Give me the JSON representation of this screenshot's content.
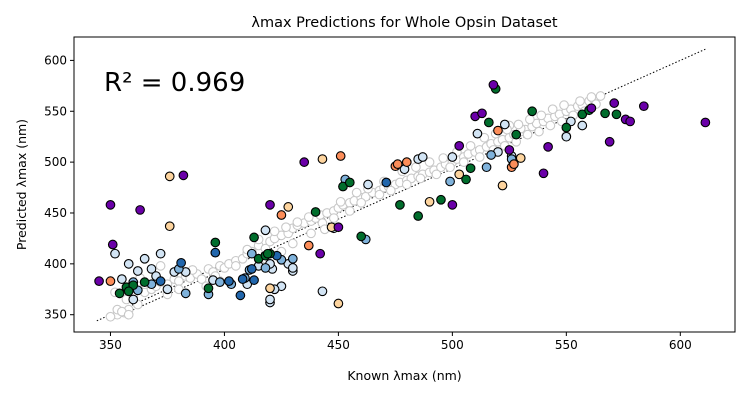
{
  "chart_data": {
    "type": "scatter",
    "title": "λmax Predictions for Whole Opsin Dataset",
    "xlabel": "Known λmax (nm)",
    "ylabel": "Predicted λmax (nm)",
    "annotation": "R² = 0.969",
    "xlim": [
      334,
      624
    ],
    "ylim": [
      333,
      623
    ],
    "xticks": [
      350,
      400,
      450,
      500,
      550,
      600
    ],
    "yticks": [
      350,
      400,
      450,
      500,
      550,
      600
    ],
    "grid": false,
    "reference_lines": [
      {
        "style": "dotted",
        "color": "#000000",
        "points": [
          [
            344,
            344
          ],
          [
            611,
            611
          ]
        ]
      },
      {
        "style": "dotted",
        "color": "#000000",
        "points": [
          [
            350,
            345
          ],
          [
            555,
            548
          ]
        ]
      }
    ],
    "series": [
      {
        "color": "#ffffff",
        "points": [
          [
            353,
            350
          ],
          [
            356,
            352
          ],
          [
            358,
            355
          ],
          [
            362,
            360
          ],
          [
            360,
            370
          ],
          [
            365,
            372
          ],
          [
            368,
            375
          ],
          [
            370,
            378
          ],
          [
            372,
            382
          ],
          [
            375,
            380
          ],
          [
            378,
            385
          ],
          [
            380,
            383
          ],
          [
            383,
            388
          ],
          [
            385,
            386
          ],
          [
            388,
            390
          ],
          [
            390,
            385
          ],
          [
            393,
            395
          ],
          [
            395,
            392
          ],
          [
            398,
            398
          ],
          [
            400,
            396
          ],
          [
            402,
            400
          ],
          [
            405,
            403
          ],
          [
            408,
            405
          ],
          [
            410,
            410
          ],
          [
            412,
            412
          ],
          [
            415,
            418
          ],
          [
            418,
            415
          ],
          [
            420,
            422
          ],
          [
            422,
            425
          ],
          [
            425,
            428
          ],
          [
            428,
            430
          ],
          [
            430,
            435
          ],
          [
            432,
            438
          ],
          [
            435,
            440
          ],
          [
            438,
            442
          ],
          [
            440,
            445
          ],
          [
            442,
            448
          ],
          [
            445,
            450
          ],
          [
            448,
            452
          ],
          [
            450,
            455
          ],
          [
            452,
            458
          ],
          [
            455,
            460
          ],
          [
            457,
            462
          ],
          [
            460,
            465
          ],
          [
            462,
            466
          ],
          [
            465,
            470
          ],
          [
            468,
            472
          ],
          [
            470,
            475
          ],
          [
            472,
            476
          ],
          [
            475,
            478
          ],
          [
            477,
            480
          ],
          [
            480,
            482
          ],
          [
            482,
            484
          ],
          [
            485,
            486
          ],
          [
            487,
            488
          ],
          [
            490,
            490
          ],
          [
            492,
            492
          ],
          [
            495,
            495
          ],
          [
            497,
            498
          ],
          [
            500,
            500
          ],
          [
            502,
            503
          ],
          [
            505,
            505
          ],
          [
            507,
            508
          ],
          [
            510,
            510
          ],
          [
            512,
            512
          ],
          [
            515,
            515
          ],
          [
            517,
            518
          ],
          [
            520,
            520
          ],
          [
            522,
            522
          ],
          [
            525,
            524
          ],
          [
            527,
            527
          ],
          [
            530,
            530
          ],
          [
            532,
            532
          ],
          [
            535,
            535
          ],
          [
            537,
            538
          ],
          [
            540,
            540
          ],
          [
            542,
            543
          ],
          [
            545,
            545
          ],
          [
            547,
            547
          ],
          [
            550,
            550
          ],
          [
            552,
            552
          ],
          [
            555,
            555
          ],
          [
            557,
            556
          ],
          [
            560,
            560
          ],
          [
            562,
            562
          ],
          [
            350,
            348
          ],
          [
            353,
            355
          ],
          [
            357,
            365
          ],
          [
            360,
            368
          ],
          [
            365,
            380
          ],
          [
            375,
            370
          ],
          [
            380,
            375
          ],
          [
            392,
            378
          ],
          [
            398,
            383
          ],
          [
            405,
            398
          ],
          [
            418,
            405
          ],
          [
            425,
            412
          ],
          [
            430,
            420
          ],
          [
            438,
            430
          ],
          [
            443,
            440
          ],
          [
            448,
            445
          ],
          [
            455,
            452
          ],
          [
            460,
            460
          ],
          [
            468,
            468
          ],
          [
            473,
            472
          ],
          [
            480,
            478
          ],
          [
            486,
            484
          ],
          [
            493,
            488
          ],
          [
            499,
            495
          ],
          [
            505,
            500
          ],
          [
            512,
            505
          ],
          [
            518,
            512
          ],
          [
            523,
            516
          ],
          [
            528,
            520
          ],
          [
            533,
            527
          ],
          [
            538,
            530
          ],
          [
            543,
            536
          ],
          [
            548,
            540
          ],
          [
            553,
            546
          ],
          [
            558,
            550
          ],
          [
            563,
            557
          ],
          [
            525,
            536
          ],
          [
            530,
            533
          ],
          [
            550,
            526
          ],
          [
            565,
            565
          ],
          [
            355,
            353
          ],
          [
            358,
            350
          ],
          [
            352,
            372
          ],
          [
            363,
            386
          ],
          [
            372,
            398
          ],
          [
            386,
            394
          ],
          [
            396,
            388
          ],
          [
            410,
            414
          ],
          [
            415,
            424
          ],
          [
            422,
            432
          ],
          [
            427,
            436
          ],
          [
            432,
            441
          ],
          [
            437,
            446
          ],
          [
            444,
            434
          ],
          [
            451,
            461
          ],
          [
            458,
            470
          ],
          [
            463,
            474
          ],
          [
            470,
            481
          ],
          [
            478,
            491
          ],
          [
            484,
            495
          ],
          [
            490,
            500
          ],
          [
            496,
            504
          ],
          [
            502,
            510
          ],
          [
            508,
            516
          ],
          [
            514,
            524
          ],
          [
            519,
            528
          ],
          [
            524,
            532
          ],
          [
            529,
            537
          ],
          [
            534,
            542
          ],
          [
            539,
            546
          ],
          [
            544,
            552
          ],
          [
            549,
            556
          ],
          [
            556,
            560
          ],
          [
            561,
            564
          ]
        ]
      },
      {
        "color": "#d2e4f4",
        "points": [
          [
            352,
            410
          ],
          [
            355,
            385
          ],
          [
            358,
            400
          ],
          [
            360,
            365
          ],
          [
            362,
            393
          ],
          [
            365,
            405
          ],
          [
            368,
            395
          ],
          [
            370,
            388
          ],
          [
            372,
            410
          ],
          [
            375,
            375
          ],
          [
            378,
            392
          ],
          [
            383,
            392
          ],
          [
            395,
            384
          ],
          [
            410,
            380
          ],
          [
            415,
            398
          ],
          [
            418,
            433
          ],
          [
            420,
            398
          ],
          [
            421,
            395
          ],
          [
            425,
            378
          ],
          [
            420,
            400
          ],
          [
            428,
            400
          ],
          [
            430,
            393
          ],
          [
            443,
            373
          ],
          [
            448,
            435
          ],
          [
            463,
            478
          ],
          [
            479,
            493
          ],
          [
            485,
            503
          ],
          [
            487,
            505
          ],
          [
            500,
            505
          ],
          [
            511,
            528
          ],
          [
            520,
            510
          ],
          [
            523,
            537
          ],
          [
            526,
            506
          ],
          [
            550,
            525
          ],
          [
            552,
            540
          ],
          [
            557,
            536
          ],
          [
            420,
            362
          ],
          [
            420,
            365
          ],
          [
            422,
            375
          ],
          [
            430,
            396
          ]
        ]
      },
      {
        "color": "#7fb2db",
        "points": [
          [
            360,
            382
          ],
          [
            362,
            374
          ],
          [
            368,
            380
          ],
          [
            383,
            371
          ],
          [
            393,
            370
          ],
          [
            398,
            382
          ],
          [
            409,
            386
          ],
          [
            412,
            410
          ],
          [
            418,
            396
          ],
          [
            430,
            405
          ],
          [
            453,
            483
          ],
          [
            462,
            424
          ],
          [
            499,
            481
          ],
          [
            515,
            495
          ],
          [
            517,
            507
          ],
          [
            526,
            503
          ],
          [
            380,
            395
          ],
          [
            403,
            380
          ],
          [
            411,
            394
          ],
          [
            425,
            404
          ]
        ]
      },
      {
        "color": "#2166ac",
        "points": [
          [
            372,
            383
          ],
          [
            381,
            401
          ],
          [
            396,
            411
          ],
          [
            407,
            369
          ],
          [
            412,
            395
          ],
          [
            402,
            383
          ],
          [
            413,
            384
          ],
          [
            423,
            408
          ],
          [
            408,
            385
          ],
          [
            471,
            480
          ]
        ]
      },
      {
        "color": "#006d2c",
        "points": [
          [
            354,
            371
          ],
          [
            357,
            377
          ],
          [
            360,
            379
          ],
          [
            365,
            382
          ],
          [
            393,
            376
          ],
          [
            396,
            421
          ],
          [
            413,
            426
          ],
          [
            415,
            405
          ],
          [
            418,
            408
          ],
          [
            420,
            410
          ],
          [
            440,
            451
          ],
          [
            452,
            476
          ],
          [
            460,
            427
          ],
          [
            477,
            458
          ],
          [
            485,
            447
          ],
          [
            495,
            463
          ],
          [
            506,
            483
          ],
          [
            508,
            494
          ],
          [
            516,
            539
          ],
          [
            519,
            572
          ],
          [
            528,
            527
          ],
          [
            535,
            550
          ],
          [
            550,
            534
          ],
          [
            557,
            547
          ],
          [
            567,
            548
          ],
          [
            572,
            547
          ],
          [
            455,
            480
          ],
          [
            358,
            373
          ],
          [
            419,
            410
          ],
          [
            560,
            551
          ]
        ]
      },
      {
        "color": "#fdd49e",
        "points": [
          [
            376,
            486
          ],
          [
            376,
            437
          ],
          [
            420,
            376
          ],
          [
            428,
            456
          ],
          [
            447,
            436
          ],
          [
            450,
            361
          ],
          [
            490,
            461
          ],
          [
            503,
            488
          ],
          [
            522,
            477
          ],
          [
            530,
            504
          ],
          [
            443,
            503
          ]
        ]
      },
      {
        "color": "#fc8d59",
        "points": [
          [
            425,
            448
          ],
          [
            437,
            418
          ],
          [
            451,
            506
          ],
          [
            475,
            496
          ],
          [
            476,
            498
          ],
          [
            480,
            500
          ],
          [
            520,
            531
          ],
          [
            526,
            495
          ],
          [
            527,
            498
          ],
          [
            350,
            383
          ]
        ]
      },
      {
        "color": "#6a00a8",
        "points": [
          [
            350,
            458
          ],
          [
            351,
            419
          ],
          [
            363,
            453
          ],
          [
            382,
            487
          ],
          [
            420,
            458
          ],
          [
            435,
            500
          ],
          [
            442,
            410
          ],
          [
            450,
            436
          ],
          [
            500,
            458
          ],
          [
            503,
            516
          ],
          [
            510,
            545
          ],
          [
            513,
            548
          ],
          [
            518,
            576
          ],
          [
            525,
            512
          ],
          [
            540,
            489
          ],
          [
            542,
            515
          ],
          [
            561,
            553
          ],
          [
            569,
            520
          ],
          [
            571,
            558
          ],
          [
            576,
            542
          ],
          [
            578,
            540
          ],
          [
            584,
            555
          ],
          [
            611,
            539
          ],
          [
            345,
            383
          ]
        ]
      }
    ]
  }
}
